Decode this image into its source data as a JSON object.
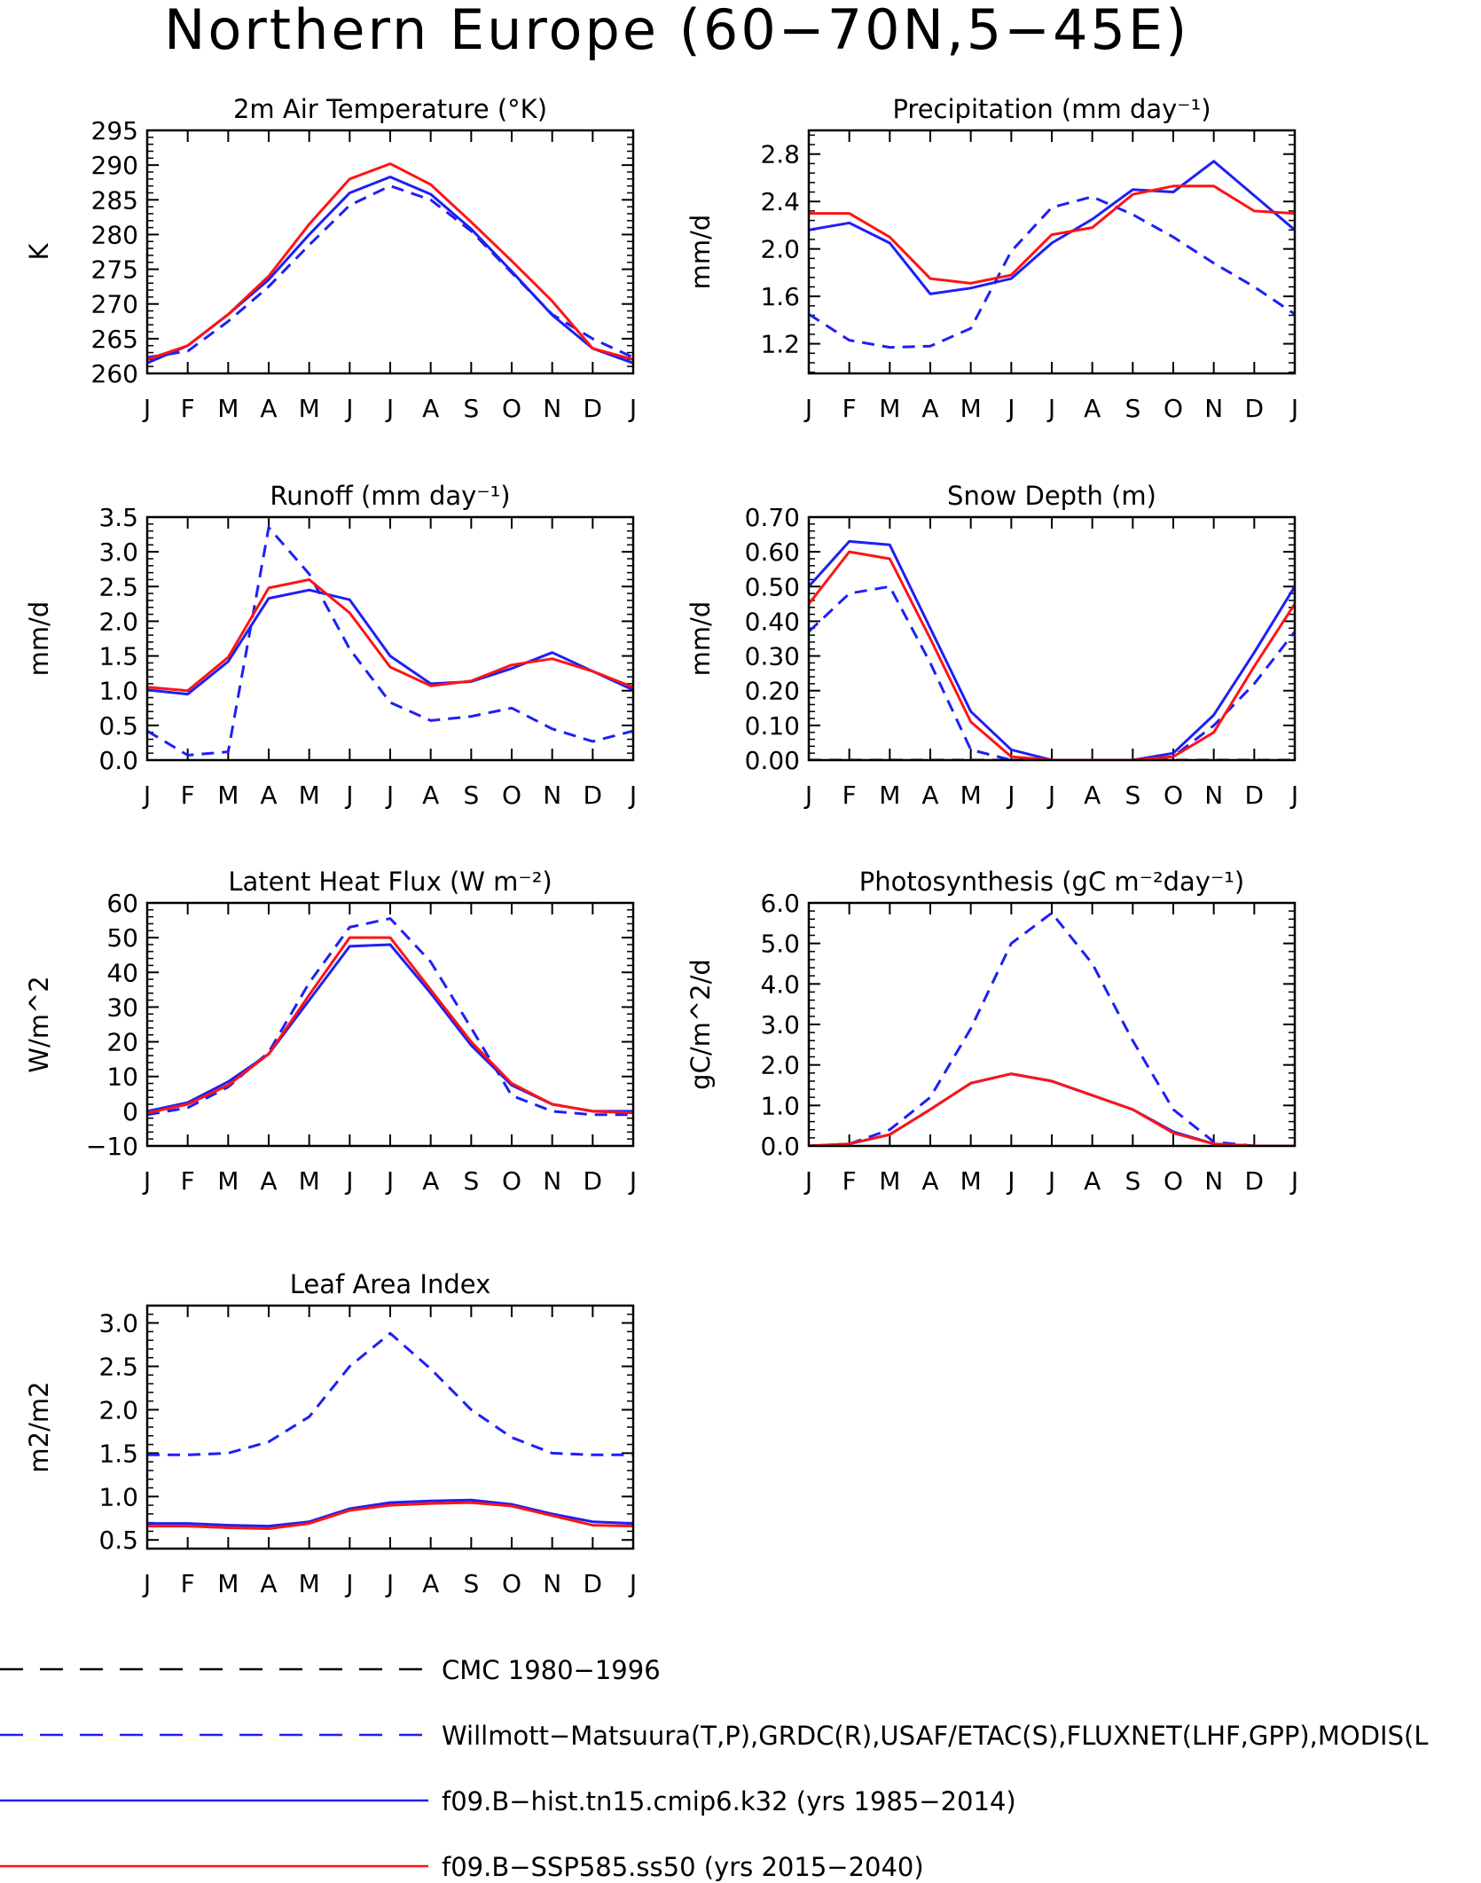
{
  "title": "Northern Europe (60−70N,5−45E)",
  "colors": {
    "obs": "#1f1ff5",
    "cmc": "#000000",
    "hist": "#1f1ff5",
    "ssp": "#ff1414"
  },
  "months": [
    "J",
    "F",
    "M",
    "A",
    "M",
    "J",
    "J",
    "A",
    "S",
    "O",
    "N",
    "D",
    "J"
  ],
  "legend": [
    {
      "label": "CMC 1980−1996",
      "color": "#000000",
      "style": "dashed"
    },
    {
      "label": "Willmott−Matsuura(T,P),GRDC(R),USAF/ETAC(S),FLUXNET(LHF,GPP),MODIS(L",
      "color": "#1f1ff5",
      "style": "dashed"
    },
    {
      "label": "f09.B−hist.tn15.cmip6.k32 (yrs 1985−2014)",
      "color": "#1f1ff5",
      "style": "solid"
    },
    {
      "label": "f09.B−SSP585.ss50 (yrs 2015−2040)",
      "color": "#ff1414",
      "style": "solid"
    }
  ],
  "chart_data": [
    {
      "type": "line",
      "title": "2m Air Temperature (°K)",
      "ylabel": "K",
      "ylim": [
        260,
        295
      ],
      "yticks": [
        260,
        265,
        270,
        275,
        280,
        285,
        290,
        295
      ],
      "ytick_labels": [
        "260",
        "265",
        "270",
        "275",
        "280",
        "285",
        "290",
        "295"
      ],
      "series": [
        {
          "key": "obs",
          "style": "dashed",
          "values": [
            262.3,
            263.2,
            267.5,
            272.5,
            278.5,
            284.2,
            287.0,
            285.0,
            280.5,
            274.5,
            268.5,
            265.0,
            262.3
          ]
        },
        {
          "key": "hist",
          "style": "solid",
          "values": [
            261.5,
            264.0,
            268.5,
            273.5,
            280.0,
            286.0,
            288.3,
            285.8,
            280.8,
            274.7,
            268.4,
            263.6,
            261.5
          ]
        },
        {
          "key": "ssp",
          "style": "solid",
          "values": [
            262.0,
            264.0,
            268.5,
            274.0,
            281.5,
            288.0,
            290.2,
            287.2,
            281.8,
            276.2,
            270.4,
            263.6,
            262.0
          ]
        }
      ]
    },
    {
      "type": "line",
      "title": "Precipitation (mm day⁻¹)",
      "ylabel": "mm/d",
      "ylim": [
        0.95,
        3.0
      ],
      "yticks": [
        1.2,
        1.6,
        2.0,
        2.4,
        2.8
      ],
      "ytick_labels": [
        "1.2",
        "1.6",
        "2.0",
        "2.4",
        "2.8"
      ],
      "series": [
        {
          "key": "obs",
          "style": "dashed",
          "values": [
            1.45,
            1.23,
            1.17,
            1.18,
            1.33,
            1.98,
            2.35,
            2.44,
            2.29,
            2.1,
            1.88,
            1.68,
            1.45
          ]
        },
        {
          "key": "hist",
          "style": "solid",
          "values": [
            2.16,
            2.22,
            2.05,
            1.62,
            1.67,
            1.75,
            2.05,
            2.25,
            2.5,
            2.48,
            2.74,
            2.45,
            2.16
          ]
        },
        {
          "key": "ssp",
          "style": "solid",
          "values": [
            2.3,
            2.3,
            2.1,
            1.75,
            1.71,
            1.78,
            2.12,
            2.18,
            2.46,
            2.53,
            2.53,
            2.32,
            2.3
          ]
        }
      ]
    },
    {
      "type": "line",
      "title": "Runoff (mm day⁻¹)",
      "ylabel": "mm/d",
      "ylim": [
        0,
        3.5
      ],
      "yticks": [
        0,
        0.5,
        1.0,
        1.5,
        2.0,
        2.5,
        3.0,
        3.5
      ],
      "ytick_labels": [
        "0.0",
        "0.5",
        "1.0",
        "1.5",
        "2.0",
        "2.5",
        "3.0",
        "3.5"
      ],
      "series": [
        {
          "key": "obs",
          "style": "dashed",
          "values": [
            0.42,
            0.07,
            0.12,
            3.35,
            2.68,
            1.6,
            0.83,
            0.57,
            0.63,
            0.75,
            0.45,
            0.27,
            0.42
          ]
        },
        {
          "key": "hist",
          "style": "solid",
          "values": [
            1.01,
            0.95,
            1.42,
            2.33,
            2.45,
            2.31,
            1.5,
            1.1,
            1.13,
            1.32,
            1.55,
            1.28,
            1.01
          ]
        },
        {
          "key": "ssp",
          "style": "solid",
          "values": [
            1.05,
            1.0,
            1.48,
            2.48,
            2.6,
            2.12,
            1.34,
            1.07,
            1.14,
            1.37,
            1.46,
            1.28,
            1.05
          ]
        }
      ]
    },
    {
      "type": "line",
      "title": "Snow Depth (m)",
      "ylabel": "mm/d",
      "ylim": [
        0,
        0.7
      ],
      "yticks": [
        0,
        0.1,
        0.2,
        0.3,
        0.4,
        0.5,
        0.6,
        0.7
      ],
      "ytick_labels": [
        "0.00",
        "0.10",
        "0.20",
        "0.30",
        "0.40",
        "0.50",
        "0.60",
        "0.70"
      ],
      "series": [
        {
          "key": "cmc",
          "style": "dashed",
          "values": [
            0,
            0,
            0,
            0,
            0,
            0,
            0,
            0,
            0,
            0,
            0,
            0,
            0
          ]
        },
        {
          "key": "obs",
          "style": "dashed",
          "values": [
            0.37,
            0.48,
            0.5,
            0.28,
            0.03,
            0.0,
            0.0,
            0.0,
            0.0,
            0.01,
            0.1,
            0.22,
            0.37
          ]
        },
        {
          "key": "hist",
          "style": "solid",
          "values": [
            0.5,
            0.63,
            0.62,
            0.38,
            0.14,
            0.03,
            0.0,
            0.0,
            0.0,
            0.02,
            0.13,
            0.31,
            0.5
          ]
        },
        {
          "key": "ssp",
          "style": "solid",
          "values": [
            0.45,
            0.6,
            0.58,
            0.35,
            0.11,
            0.01,
            0.0,
            0.0,
            0.0,
            0.01,
            0.08,
            0.27,
            0.45
          ]
        }
      ]
    },
    {
      "type": "line",
      "title": "Latent Heat Flux (W m⁻²)",
      "ylabel": "W/m^2",
      "ylim": [
        -10,
        60
      ],
      "yticks": [
        -10,
        0,
        10,
        20,
        30,
        40,
        50,
        60
      ],
      "ytick_labels": [
        "−10",
        "0",
        "10",
        "20",
        "30",
        "40",
        "50",
        "60"
      ],
      "series": [
        {
          "key": "obs",
          "style": "dashed",
          "values": [
            -1.0,
            1.0,
            7.0,
            17.0,
            37.0,
            53.0,
            55.5,
            43.0,
            24.0,
            4.5,
            0.0,
            -1.0,
            -1.0
          ]
        },
        {
          "key": "hist",
          "style": "solid",
          "values": [
            0.0,
            2.5,
            8.5,
            16.5,
            32.0,
            47.5,
            48.0,
            34.0,
            19.0,
            7.5,
            2.0,
            0.0,
            0.0
          ]
        },
        {
          "key": "ssp",
          "style": "solid",
          "values": [
            -0.5,
            2.0,
            7.5,
            16.5,
            33.5,
            50.0,
            50.0,
            35.0,
            20.0,
            8.0,
            2.0,
            0.0,
            -0.5
          ]
        }
      ]
    },
    {
      "type": "line",
      "title": "Photosynthesis (gC m⁻²day⁻¹)",
      "ylabel": "gC/m^2/d",
      "ylim": [
        0,
        6.0
      ],
      "yticks": [
        0,
        1,
        2,
        3,
        4,
        5,
        6
      ],
      "ytick_labels": [
        "0.0",
        "1.0",
        "2.0",
        "3.0",
        "4.0",
        "5.0",
        "6.0"
      ],
      "series": [
        {
          "key": "obs",
          "style": "dashed",
          "values": [
            0.0,
            0.05,
            0.4,
            1.2,
            2.9,
            5.0,
            5.75,
            4.5,
            2.6,
            0.9,
            0.1,
            0.0,
            0.0
          ]
        },
        {
          "key": "hist",
          "style": "solid",
          "values": [
            0.0,
            0.05,
            0.28,
            0.9,
            1.55,
            1.78,
            1.6,
            1.25,
            0.9,
            0.35,
            0.05,
            0.0,
            0.0
          ]
        },
        {
          "key": "ssp",
          "style": "solid",
          "values": [
            0.0,
            0.05,
            0.28,
            0.9,
            1.55,
            1.78,
            1.6,
            1.25,
            0.9,
            0.32,
            0.05,
            0.0,
            0.0
          ]
        }
      ]
    },
    {
      "type": "line",
      "title": "Leaf Area Index",
      "ylabel": "m2/m2",
      "ylim": [
        0.4,
        3.2
      ],
      "yticks": [
        0.5,
        1.0,
        1.5,
        2.0,
        2.5,
        3.0
      ],
      "ytick_labels": [
        "0.5",
        "1.0",
        "1.5",
        "2.0",
        "2.5",
        "3.0"
      ],
      "series": [
        {
          "key": "obs",
          "style": "dashed",
          "values": [
            1.48,
            1.48,
            1.5,
            1.63,
            1.92,
            2.5,
            2.88,
            2.47,
            2.0,
            1.68,
            1.5,
            1.48,
            1.48
          ]
        },
        {
          "key": "hist",
          "style": "solid",
          "values": [
            0.69,
            0.69,
            0.67,
            0.66,
            0.71,
            0.86,
            0.93,
            0.95,
            0.96,
            0.91,
            0.8,
            0.71,
            0.69
          ]
        },
        {
          "key": "ssp",
          "style": "solid",
          "values": [
            0.66,
            0.66,
            0.64,
            0.63,
            0.69,
            0.84,
            0.9,
            0.92,
            0.93,
            0.89,
            0.78,
            0.67,
            0.66
          ]
        }
      ]
    }
  ]
}
